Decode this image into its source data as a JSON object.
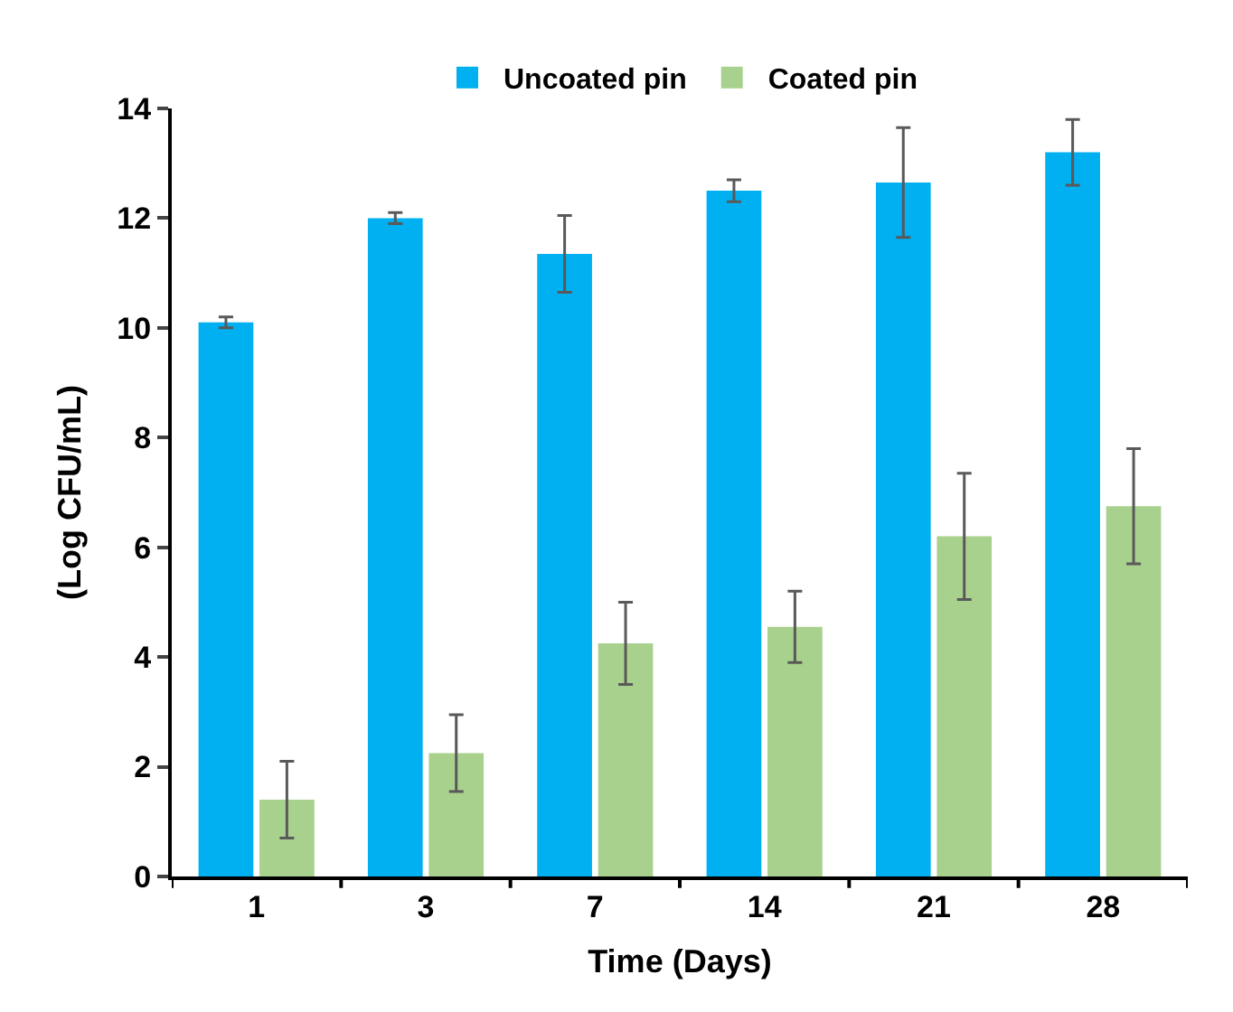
{
  "chart_data": {
    "type": "bar",
    "xlabel": "Time (Days)",
    "ylabel": "(Log CFU/mL)",
    "categories": [
      "1",
      "3",
      "7",
      "14",
      "21",
      "28"
    ],
    "series": [
      {
        "name": "Uncoated pin",
        "color": "#00b0f0",
        "values": [
          10.1,
          12.0,
          11.35,
          12.5,
          12.65,
          13.2
        ],
        "errors": [
          0.1,
          0.1,
          0.7,
          0.2,
          1.0,
          0.6
        ]
      },
      {
        "name": "Coated pin",
        "color": "#a9d18e",
        "values": [
          1.4,
          2.25,
          4.25,
          4.55,
          6.2,
          6.75
        ],
        "errors": [
          0.7,
          0.7,
          0.75,
          0.65,
          1.15,
          1.05
        ]
      }
    ],
    "ylim": [
      0,
      14
    ],
    "yticks": [
      0,
      2,
      4,
      6,
      8,
      10,
      12,
      14
    ],
    "legend": "top"
  }
}
